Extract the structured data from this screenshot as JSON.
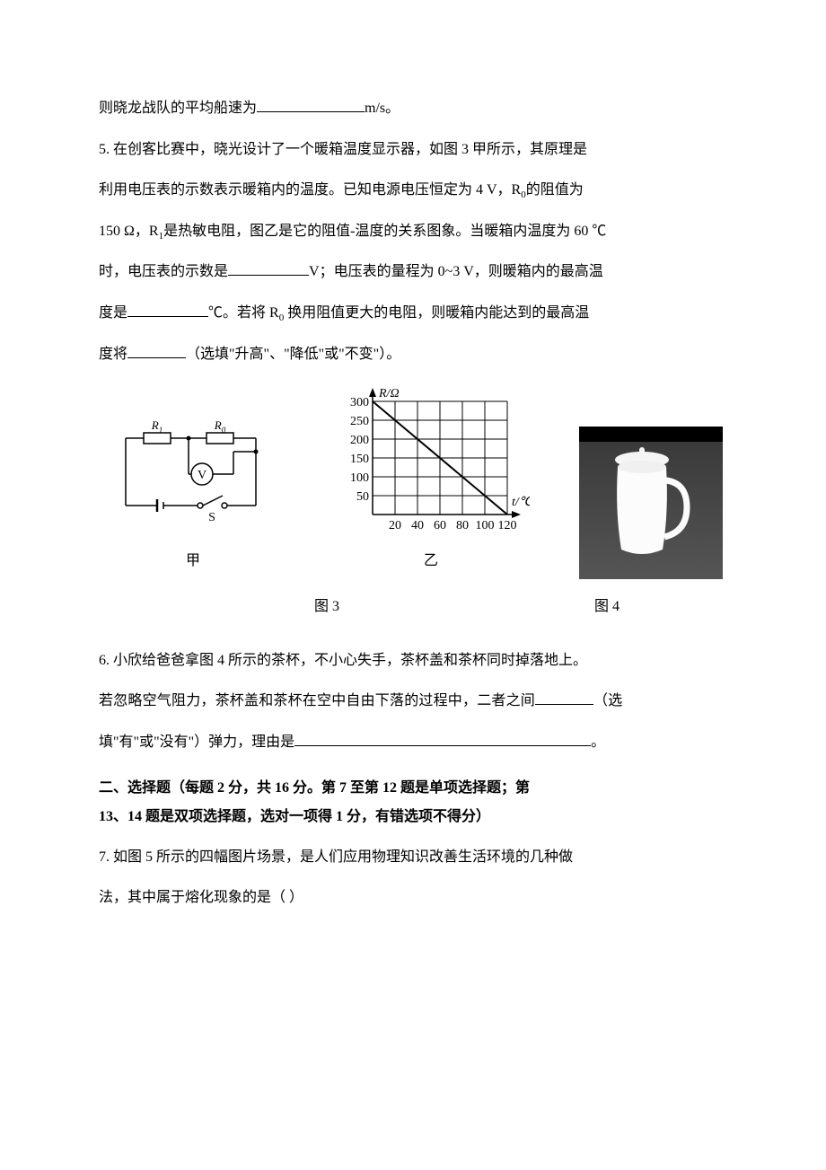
{
  "q4_tail": {
    "prefix": "则晓龙战队的平均船速为",
    "unit": "m/s。"
  },
  "q5": {
    "l1": "5. 在创客比赛中，晓光设计了一个暖箱温度显示器，如图 3 甲所示，其原理是",
    "l2a": "利用电压表的示数表示暖箱内的温度。已知电源电压恒定为 4 V，R",
    "l2b": "的阻值为",
    "l3a": "150 Ω，R",
    "l3b": "是热敏电阻，图乙是它的阻值-温度的关系图象。当暖箱内温度为 60 ℃",
    "l4a": "时，电压表的示数是",
    "l4b": "V；电压表的量程为 0~3 V，则暖箱内的最高温",
    "l5a": "度是",
    "l5b": "℃。若将 R",
    "l5c": " 换用阻值更大的电阻，则暖箱内能达到的最高温",
    "l6a": "度将",
    "l6b": "（选填\"升高\"、\"降低\"或\"不变\"）。",
    "sub0": "0",
    "sub1": "1"
  },
  "circuit": {
    "r1": "R",
    "r0": "R",
    "v": "V",
    "s": "S",
    "sub1": "1",
    "sub0": "0",
    "label": "甲"
  },
  "graph": {
    "type": "line",
    "y_label": "R/Ω",
    "x_label": "t/℃",
    "y_ticks": [
      50,
      100,
      150,
      200,
      250,
      300
    ],
    "x_ticks": [
      20,
      40,
      60,
      80,
      100,
      120
    ],
    "grid_color": "#000000",
    "line_color": "#000000",
    "background_color": "#ffffff",
    "line_p1": {
      "x": 0,
      "y": 300
    },
    "line_p2": {
      "x": 120,
      "y": 0
    },
    "label": "乙"
  },
  "caption": {
    "fig3": "图 3",
    "fig4": "图 4"
  },
  "q6": {
    "l1": "6. 小欣给爸爸拿图 4 所示的茶杯，不小心失手，茶杯盖和茶杯同时掉落地上。",
    "l2a": "若忽略空气阻力，茶杯盖和茶杯在空中自由下落的过程中，二者之间",
    "l2b": "（选",
    "l3a": "填\"有\"或\"没有\"）弹力，理由是",
    "l3b": "。"
  },
  "section2": {
    "l1": "二、选择题（每题 2 分，共 16 分。第 7 至第 12 题是单项选择题；第",
    "l2": "13、14 题是双项选择题，选对一项得 1 分，有错选项不得分）"
  },
  "q7": {
    "l1": "7. 如图 5 所示的四幅图片场景，是人们应用物理知识改善生活环境的几种做",
    "l2": "法，其中属于熔化现象的是（  ）"
  }
}
